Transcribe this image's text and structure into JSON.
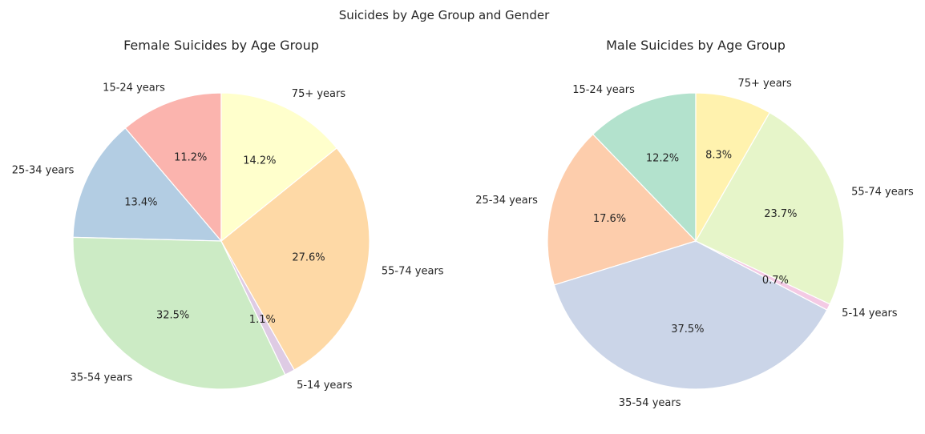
{
  "figure": {
    "title": "Suicides by Age Group and Gender"
  },
  "chart_data": [
    {
      "type": "pie",
      "title": "Female Suicides by Age Group",
      "start_angle_deg": 90,
      "direction": "counterclockwise",
      "labels": [
        "15-24 years",
        "25-34 years",
        "35-54 years",
        "5-14 years",
        "55-74 years",
        "75+ years"
      ],
      "values": [
        11.2,
        13.4,
        32.5,
        1.1,
        27.6,
        14.2
      ],
      "value_labels": [
        "11.2%",
        "13.4%",
        "32.5%",
        "1.1%",
        "27.6%",
        "14.2%"
      ],
      "colors": [
        "#fbb4ae",
        "#b3cde3",
        "#ccebc5",
        "#decbe4",
        "#fed9a6",
        "#ffffcc"
      ]
    },
    {
      "type": "pie",
      "title": "Male Suicides by Age Group",
      "start_angle_deg": 90,
      "direction": "counterclockwise",
      "labels": [
        "15-24 years",
        "25-34 years",
        "35-54 years",
        "5-14 years",
        "55-74 years",
        "75+ years"
      ],
      "values": [
        12.2,
        17.6,
        37.5,
        0.7,
        23.7,
        8.3
      ],
      "value_labels": [
        "12.2%",
        "17.6%",
        "37.5%",
        "0.7%",
        "23.7%",
        "8.3%"
      ],
      "colors": [
        "#b3e2cd",
        "#fdcdac",
        "#cbd5e8",
        "#f4cae4",
        "#e6f5c9",
        "#fff2ae"
      ]
    }
  ]
}
